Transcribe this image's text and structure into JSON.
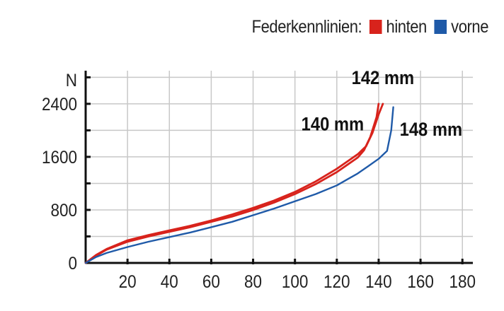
{
  "chart_data": {
    "type": "line",
    "title": "",
    "legend": {
      "title": "Federkennlinien:",
      "placement": "top-right",
      "entries": [
        {
          "name": "hinten",
          "color": "#d8231c"
        },
        {
          "name": "vorne",
          "color": "#1f5aa8"
        }
      ]
    },
    "xlabel": "",
    "ylabel": "N",
    "xlim": [
      0,
      185
    ],
    "ylim": [
      0,
      2900
    ],
    "xticks": [
      20,
      40,
      60,
      80,
      100,
      120,
      140,
      160,
      180
    ],
    "yticks": [
      0,
      800,
      1600,
      2400
    ],
    "grid": true,
    "series": [
      {
        "name": "140 mm",
        "group": "hinten",
        "color": "#d8231c",
        "x": [
          0,
          5,
          10,
          20,
          30,
          40,
          50,
          60,
          70,
          80,
          90,
          100,
          110,
          120,
          125,
          130,
          133,
          136,
          139,
          140
        ],
        "y": [
          0,
          110,
          200,
          320,
          400,
          470,
          540,
          620,
          700,
          800,
          910,
          1040,
          1190,
          1370,
          1480,
          1590,
          1700,
          1900,
          2200,
          2400
        ]
      },
      {
        "name": "142 mm",
        "group": "hinten",
        "color": "#d8231c",
        "x": [
          0,
          5,
          10,
          20,
          30,
          40,
          50,
          60,
          70,
          80,
          90,
          100,
          110,
          120,
          125,
          130,
          134,
          137,
          140,
          142
        ],
        "y": [
          0,
          120,
          210,
          340,
          420,
          490,
          560,
          640,
          730,
          830,
          940,
          1070,
          1230,
          1420,
          1530,
          1640,
          1760,
          1960,
          2240,
          2400
        ]
      },
      {
        "name": "148 mm",
        "group": "vorne",
        "color": "#1f5aa8",
        "x": [
          0,
          5,
          10,
          20,
          30,
          40,
          50,
          60,
          70,
          80,
          90,
          100,
          110,
          120,
          125,
          130,
          135,
          140,
          144,
          146,
          147
        ],
        "y": [
          0,
          90,
          150,
          240,
          320,
          390,
          460,
          540,
          620,
          720,
          820,
          930,
          1040,
          1170,
          1260,
          1350,
          1460,
          1570,
          1690,
          2000,
          2350
        ]
      }
    ],
    "annotations": [
      {
        "text": "142 mm",
        "x": 142,
        "y": 2700
      },
      {
        "text": "140 mm",
        "x": 118,
        "y": 2000
      },
      {
        "text": "148 mm",
        "x": 165,
        "y": 1920
      }
    ]
  }
}
